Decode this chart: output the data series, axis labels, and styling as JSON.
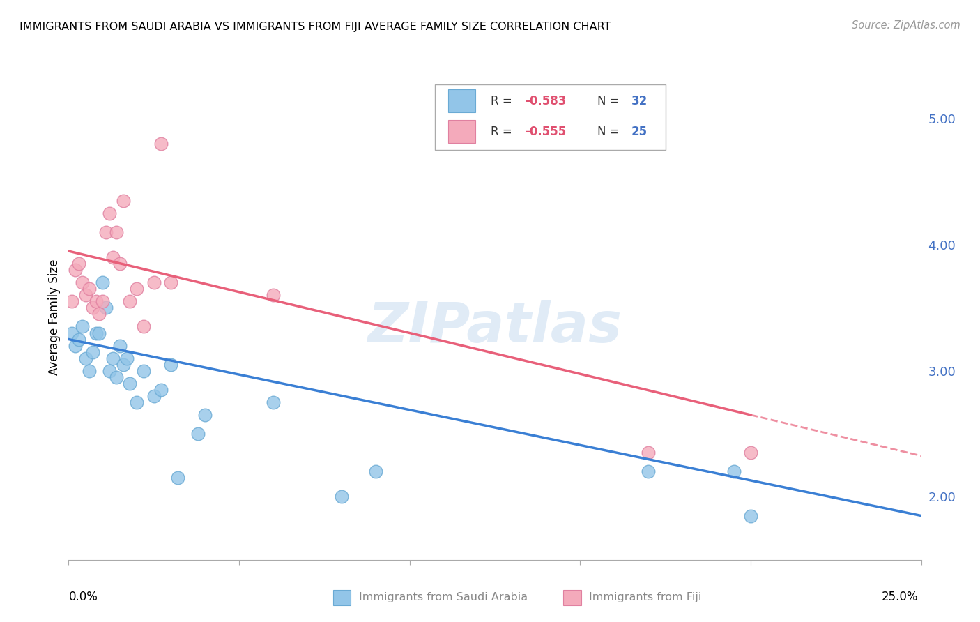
{
  "title": "IMMIGRANTS FROM SAUDI ARABIA VS IMMIGRANTS FROM FIJI AVERAGE FAMILY SIZE CORRELATION CHART",
  "source": "Source: ZipAtlas.com",
  "ylabel": "Average Family Size",
  "right_yticks": [
    2.0,
    3.0,
    4.0,
    5.0
  ],
  "background_color": "#ffffff",
  "grid_color": "#cccccc",
  "watermark": "ZIPatlas",
  "saudi_color": "#92C5E8",
  "saudi_edge_color": "#6AAAD4",
  "fiji_color": "#F4AABB",
  "fiji_edge_color": "#E080A0",
  "saudi_line_color": "#3A7FD4",
  "fiji_line_color": "#E8607A",
  "saudi_label": "Immigrants from Saudi Arabia",
  "fiji_label": "Immigrants from Fiji",
  "legend_saudi_r": "R = -0.583",
  "legend_saudi_n": "N = 32",
  "legend_fiji_r": "R = -0.555",
  "legend_fiji_n": "N = 25",
  "legend_r_color": "#555555",
  "legend_n_color": "#3A7FD4",
  "legend_val_color": "#E8607A",
  "saudi_x": [
    0.001,
    0.002,
    0.003,
    0.004,
    0.005,
    0.006,
    0.007,
    0.008,
    0.009,
    0.01,
    0.011,
    0.012,
    0.013,
    0.014,
    0.015,
    0.016,
    0.017,
    0.018,
    0.02,
    0.022,
    0.025,
    0.027,
    0.03,
    0.032,
    0.038,
    0.04,
    0.06,
    0.08,
    0.09,
    0.17,
    0.195,
    0.2
  ],
  "saudi_y": [
    3.3,
    3.2,
    3.25,
    3.35,
    3.1,
    3.0,
    3.15,
    3.3,
    3.3,
    3.7,
    3.5,
    3.0,
    3.1,
    2.95,
    3.2,
    3.05,
    3.1,
    2.9,
    2.75,
    3.0,
    2.8,
    2.85,
    3.05,
    2.15,
    2.5,
    2.65,
    2.75,
    2.0,
    2.2,
    2.2,
    2.2,
    1.85
  ],
  "fiji_x": [
    0.001,
    0.002,
    0.003,
    0.004,
    0.005,
    0.006,
    0.007,
    0.008,
    0.009,
    0.01,
    0.011,
    0.012,
    0.013,
    0.014,
    0.015,
    0.016,
    0.018,
    0.02,
    0.022,
    0.025,
    0.027,
    0.03,
    0.06,
    0.17,
    0.2
  ],
  "fiji_y": [
    3.55,
    3.8,
    3.85,
    3.7,
    3.6,
    3.65,
    3.5,
    3.55,
    3.45,
    3.55,
    4.1,
    4.25,
    3.9,
    4.1,
    3.85,
    4.35,
    3.55,
    3.65,
    3.35,
    3.7,
    4.8,
    3.7,
    3.6,
    2.35,
    2.35
  ],
  "xmin": 0.0,
  "xmax": 0.25,
  "ymin": 1.5,
  "ymax": 5.35,
  "xtick_vals": [
    0.0,
    0.05,
    0.1,
    0.15,
    0.2,
    0.25
  ]
}
